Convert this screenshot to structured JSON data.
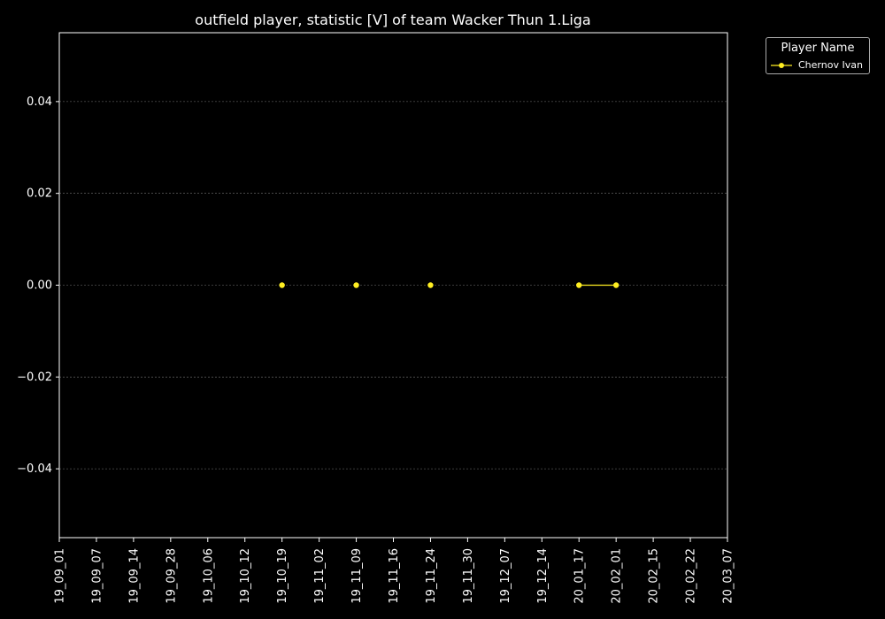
{
  "chart_data": {
    "type": "line",
    "title": "outfield player, statistic [V] of team Wacker Thun 1.Liga",
    "xlabel": "",
    "ylabel": "",
    "categories": [
      "19_09_01",
      "19_09_07",
      "19_09_14",
      "19_09_28",
      "19_10_06",
      "19_10_12",
      "19_10_19",
      "19_11_02",
      "19_11_09",
      "19_11_16",
      "19_11_24",
      "19_11_30",
      "19_12_07",
      "19_12_14",
      "20_01_17",
      "20_02_01",
      "20_02_15",
      "20_02_22",
      "20_03_07"
    ],
    "yticks": [
      "0.04",
      "0.02",
      "0.00",
      "−0.02",
      "−0.04"
    ],
    "ytick_values": [
      0.04,
      0.02,
      0.0,
      -0.02,
      -0.04
    ],
    "ylim": [
      -0.055,
      0.055
    ],
    "grid": "horizontal dashed",
    "legend": {
      "title": "Player Name",
      "placement": "upper-right outside"
    },
    "series": [
      {
        "name": "Chernov Ivan",
        "color": "#ffee22",
        "values": [
          null,
          null,
          null,
          null,
          null,
          null,
          0.0,
          null,
          0.0,
          null,
          0.0,
          null,
          null,
          null,
          0.0,
          0.0,
          null,
          null,
          null
        ]
      }
    ]
  }
}
